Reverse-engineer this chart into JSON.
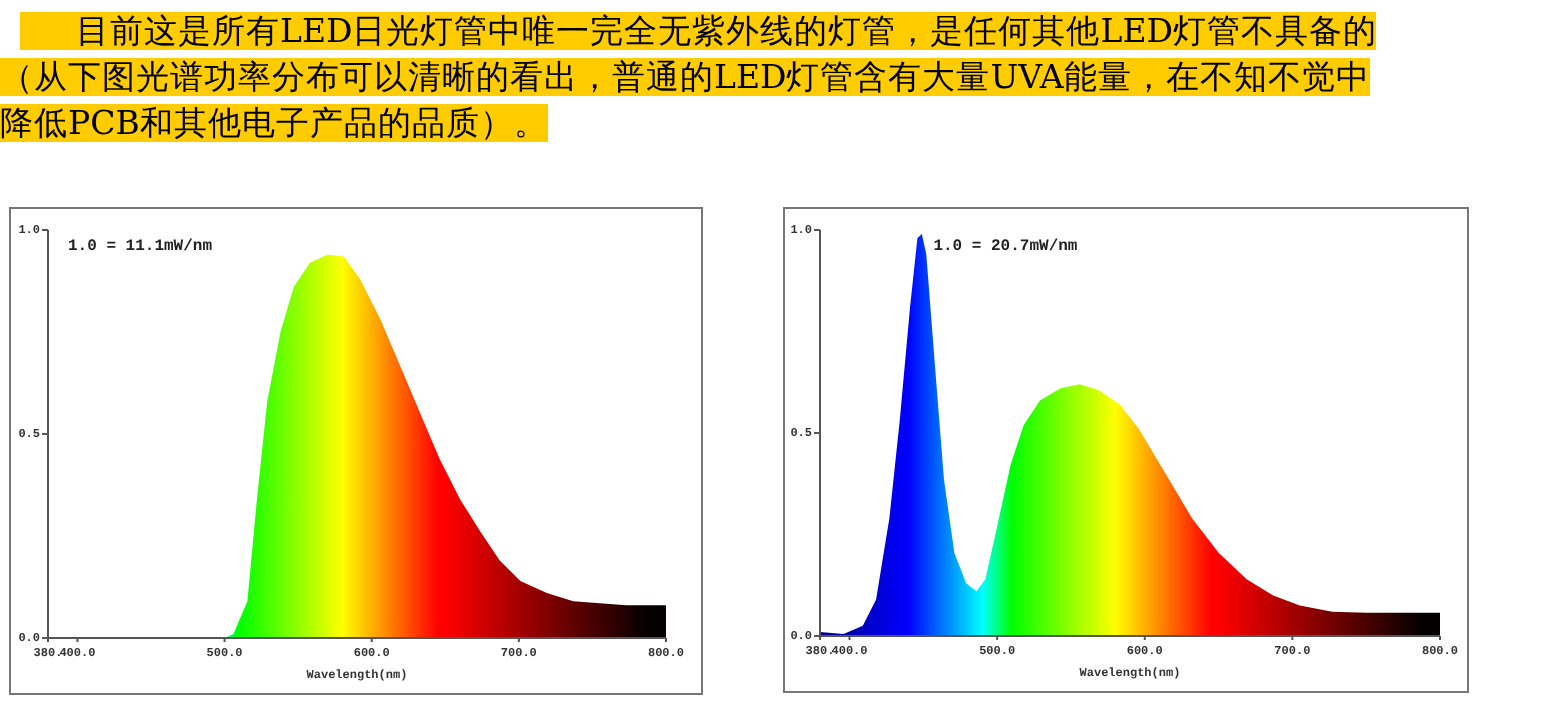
{
  "chart_data": [
    {
      "type": "other",
      "annotations": [
        "目前这是所有LED日光灯管中唯一完全无紫外线的灯管，是任何其他LED灯管不具备的",
        "（从下图光谱功率分布可以清晰的看出，普通的LED灯管含有大量UVA能量，在不知不觉中",
        "降低PCB和其他电子产品的品质）。"
      ]
    },
    {
      "type": "area",
      "xlabel": "Wavelength(nm)",
      "annotations": [
        "1.0 = 11.1mW/nm"
      ],
      "x": [
        500,
        506,
        515.5,
        522,
        529,
        538,
        547,
        558,
        570,
        581,
        592,
        606,
        619,
        633,
        646,
        660,
        674,
        687,
        701,
        719,
        737,
        755,
        773,
        800
      ],
      "values": [
        0,
        0.01,
        0.09,
        0.34,
        0.58,
        0.75,
        0.86,
        0.92,
        0.94,
        0.935,
        0.88,
        0.78,
        0.67,
        0.55,
        0.44,
        0.34,
        0.26,
        0.19,
        0.14,
        0.11,
        0.09,
        0.085,
        0.08,
        0.08
      ],
      "xlim": [
        380,
        800
      ],
      "xticks": [
        {
          "value": 380,
          "label": "380."
        },
        {
          "value": 400,
          "label": "400.0"
        },
        {
          "value": 500,
          "label": "500.0"
        },
        {
          "value": 600,
          "label": "600.0"
        },
        {
          "value": 700,
          "label": "700.0"
        },
        {
          "value": 800,
          "label": "800.0"
        }
      ],
      "ylim": [
        0,
        1
      ],
      "yticks": [
        {
          "value": 0,
          "label": "0.0"
        },
        {
          "value": 0.5,
          "label": "0.5"
        },
        {
          "value": 1,
          "label": "1.0"
        }
      ]
    },
    {
      "type": "area",
      "xlabel": "Wavelength(nm)",
      "annotations": [
        "1.0 = 20.7mW/nm"
      ],
      "x": [
        380,
        396,
        409,
        418,
        427,
        434,
        441,
        446,
        449,
        452,
        458,
        464,
        471,
        479,
        486,
        492,
        500,
        509,
        518,
        529,
        543,
        556,
        569,
        583,
        596,
        614,
        632,
        650,
        669,
        687,
        705,
        727,
        750,
        772,
        800
      ],
      "values": [
        0.01,
        0.005,
        0.025,
        0.09,
        0.29,
        0.53,
        0.81,
        0.98,
        0.99,
        0.94,
        0.66,
        0.385,
        0.205,
        0.13,
        0.11,
        0.14,
        0.27,
        0.42,
        0.52,
        0.58,
        0.61,
        0.62,
        0.605,
        0.57,
        0.51,
        0.4,
        0.29,
        0.205,
        0.14,
        0.1,
        0.075,
        0.06,
        0.057,
        0.057,
        0.057
      ],
      "xlim": [
        380,
        800
      ],
      "xticks": [
        {
          "value": 380,
          "label": "380."
        },
        {
          "value": 400,
          "label": "400.0"
        },
        {
          "value": 500,
          "label": "500.0"
        },
        {
          "value": 600,
          "label": "600.0"
        },
        {
          "value": 700,
          "label": "700.0"
        },
        {
          "value": 800,
          "label": "800.0"
        }
      ],
      "ylim": [
        0,
        1
      ],
      "yticks": [
        {
          "value": 0,
          "label": "0.0"
        },
        {
          "value": 0.5,
          "label": "0.5"
        },
        {
          "value": 1,
          "label": "1.0"
        }
      ]
    }
  ]
}
